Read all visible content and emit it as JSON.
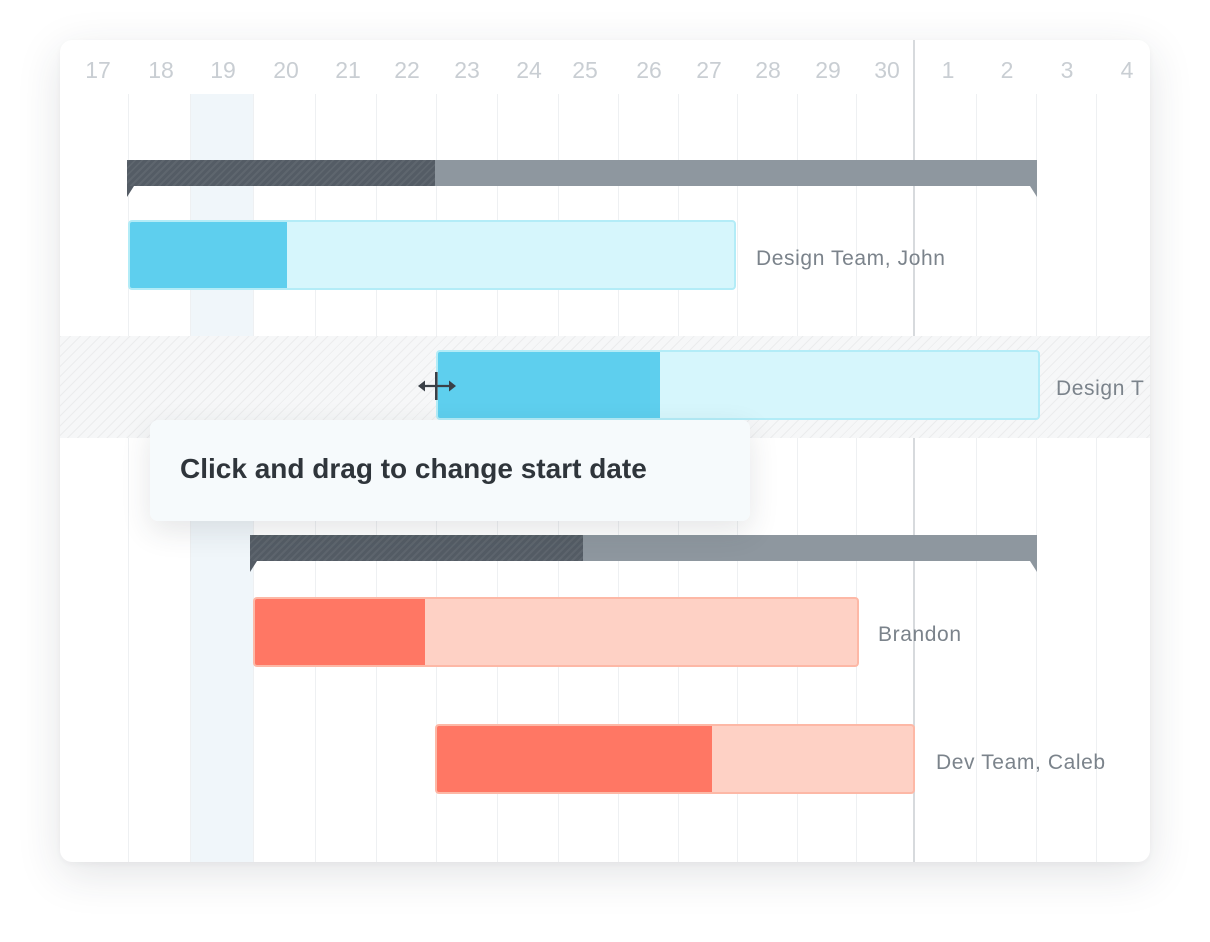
{
  "timeline": {
    "days": [
      "17",
      "18",
      "19",
      "20",
      "21",
      "22",
      "23",
      "24",
      "25",
      "26",
      "27",
      "28",
      "29",
      "30",
      "1",
      "2",
      "3",
      "4"
    ],
    "highlighted_day": "19",
    "today_marker_after": "30"
  },
  "colors": {
    "group_done": "#545c65",
    "group_remaining": "#8e979f",
    "design_progress": "#5ecfee",
    "design_remaining": "#d6f6fc",
    "dev_progress": "#ff7764",
    "dev_remaining": "#fed1c5"
  },
  "tasks": [
    {
      "label": "Design Team, John",
      "color": "blue"
    },
    {
      "label": "Design T",
      "color": "blue",
      "state": "hover"
    },
    {
      "label": "Brandon",
      "color": "red"
    },
    {
      "label": "Dev Team, Caleb",
      "color": "red"
    }
  ],
  "tooltip": {
    "text": "Click and drag to change start date"
  },
  "cursor": {
    "icon": "resize-horizontal-icon"
  }
}
